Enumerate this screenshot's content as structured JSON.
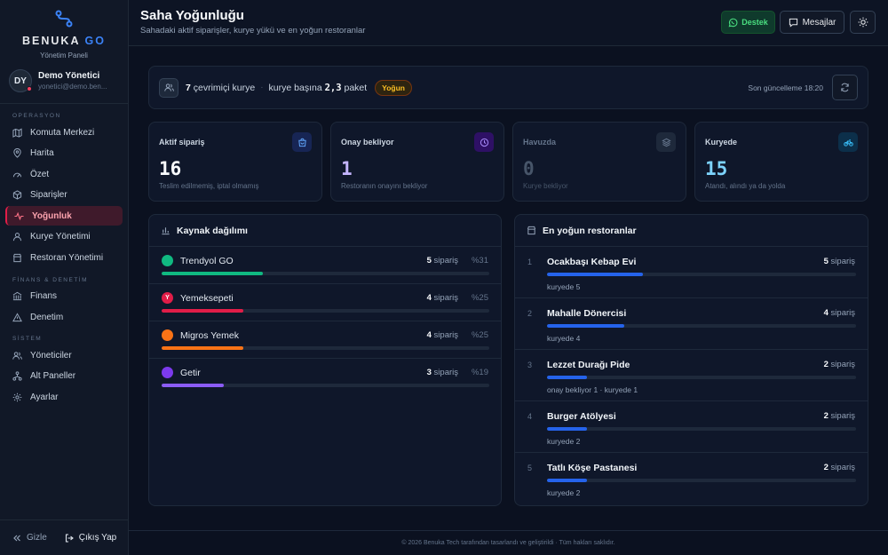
{
  "brand": {
    "name": "BENUKA",
    "suffix": "GO",
    "panel_label": "Yönetim Paneli"
  },
  "user": {
    "initials": "DY",
    "name": "Demo Yönetici",
    "email": "yonetici@demo.ben..."
  },
  "sidebar": {
    "sections": [
      {
        "title": "OPERASYON",
        "items": [
          {
            "label": "Komuta Merkezi",
            "icon": "map-icon"
          },
          {
            "label": "Harita",
            "icon": "pin-icon"
          },
          {
            "label": "Özet",
            "icon": "gauge-icon"
          },
          {
            "label": "Siparişler",
            "icon": "box-icon"
          },
          {
            "label": "Yoğunluk",
            "icon": "pulse-icon",
            "active": true
          },
          {
            "label": "Kurye Yönetimi",
            "icon": "user-icon"
          },
          {
            "label": "Restoran Yönetimi",
            "icon": "store-icon"
          }
        ]
      },
      {
        "title": "FİNANS & DENETİM",
        "items": [
          {
            "label": "Finans",
            "icon": "bank-icon"
          },
          {
            "label": "Denetim",
            "icon": "warning-icon"
          }
        ]
      },
      {
        "title": "SİSTEM",
        "items": [
          {
            "label": "Yöneticiler",
            "icon": "users-icon"
          },
          {
            "label": "Alt Paneller",
            "icon": "network-icon"
          },
          {
            "label": "Ayarlar",
            "icon": "gear-icon"
          }
        ]
      }
    ],
    "hide_label": "Gizle",
    "logout_label": "Çıkış Yap"
  },
  "header": {
    "title": "Saha Yoğunluğu",
    "subtitle": "Sahadaki aktif siparişler, kurye yükü ve en yoğun restoranlar",
    "support_label": "Destek",
    "messages_label": "Mesajlar"
  },
  "summary": {
    "online_count": "7",
    "online_label": "çevrimiçi kurye",
    "per_courier_prefix": "kurye başına",
    "per_courier_value": "2,3",
    "per_courier_suffix": "paket",
    "badge": "Yoğun",
    "last_updated": "Son güncelleme 18:20"
  },
  "kpis": [
    {
      "label": "Aktif sipariş",
      "value": "16",
      "desc": "Teslim edilmemiş, iptal olmamış",
      "color": "#f8fafc",
      "icon": "bag-icon",
      "icon_color": "#60a5fa",
      "icon_bg": "#172554"
    },
    {
      "label": "Onay bekliyor",
      "value": "1",
      "desc": "Restoranın onayını bekliyor",
      "color": "#c4b5fd",
      "icon": "clock-icon",
      "icon_color": "#a78bfa",
      "icon_bg": "#2e1065"
    },
    {
      "label": "Havuzda",
      "value": "0",
      "desc": "Kurye bekliyor",
      "color": "#475569",
      "icon": "layers-icon",
      "icon_color": "#64748b",
      "icon_bg": "#1e293b"
    },
    {
      "label": "Kuryede",
      "value": "15",
      "desc": "Atandı, alındı ya da yolda",
      "color": "#7dd3fc",
      "icon": "bike-icon",
      "icon_color": "#38bdf8",
      "icon_bg": "#0c2f4a"
    }
  ],
  "sources": {
    "title": "Kaynak dağılımı",
    "items": [
      {
        "name": "Trendyol GO",
        "count": "5",
        "unit": "sipariş",
        "pct": "%31",
        "share": 0.31,
        "color": "#10b981",
        "logo_text": ""
      },
      {
        "name": "Yemeksepeti",
        "count": "4",
        "unit": "sipariş",
        "pct": "%25",
        "share": 0.25,
        "color": "#e11d48",
        "logo_text": "Y"
      },
      {
        "name": "Migros Yemek",
        "count": "4",
        "unit": "sipariş",
        "pct": "%25",
        "share": 0.25,
        "color": "#f97316",
        "logo_text": ""
      },
      {
        "name": "Getir",
        "count": "3",
        "unit": "sipariş",
        "pct": "%19",
        "share": 0.19,
        "color": "#8b5cf6",
        "logo_text": ""
      }
    ]
  },
  "restaurants": {
    "title": "En yoğun restoranlar",
    "items": [
      {
        "rank": "1",
        "name": "Ocakbaşı Kebap Evi",
        "count": "5",
        "unit": "sipariş",
        "sub": "kuryede 5",
        "share": 0.31
      },
      {
        "rank": "2",
        "name": "Mahalle Dönercisi",
        "count": "4",
        "unit": "sipariş",
        "sub": "kuryede 4",
        "share": 0.25
      },
      {
        "rank": "3",
        "name": "Lezzet Durağı Pide",
        "count": "2",
        "unit": "sipariş",
        "sub": "onay bekliyor 1 · kuryede 1",
        "share": 0.13
      },
      {
        "rank": "4",
        "name": "Burger Atölyesi",
        "count": "2",
        "unit": "sipariş",
        "sub": "kuryede 2",
        "share": 0.13
      },
      {
        "rank": "5",
        "name": "Tatlı Köşe Pastanesi",
        "count": "2",
        "unit": "sipariş",
        "sub": "kuryede 2",
        "share": 0.13
      }
    ]
  },
  "footer": "© 2026 Benuka Tech tarafından tasarlandı ve geliştirildi · Tüm hakları saklıdır."
}
